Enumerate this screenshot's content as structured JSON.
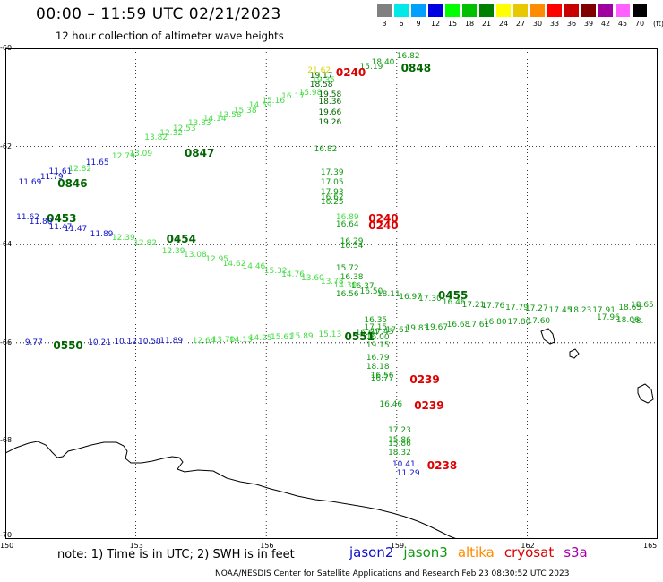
{
  "title": "00:00 – 11:59 UTC 02/21/2023",
  "subtitle": "12 hour collection of altimeter wave heights",
  "legend": {
    "unit": "(ft)",
    "bins": [
      {
        "label": "3",
        "color": "#808080"
      },
      {
        "label": "6",
        "color": "#00e8e8"
      },
      {
        "label": "9",
        "color": "#00a0ff"
      },
      {
        "label": "12",
        "color": "#0000e0"
      },
      {
        "label": "15",
        "color": "#00ff00"
      },
      {
        "label": "18",
        "color": "#00c000"
      },
      {
        "label": "21",
        "color": "#008000"
      },
      {
        "label": "24",
        "color": "#ffff00"
      },
      {
        "label": "27",
        "color": "#e8c800"
      },
      {
        "label": "30",
        "color": "#ff8c00"
      },
      {
        "label": "33",
        "color": "#ff0000"
      },
      {
        "label": "36",
        "color": "#c80000"
      },
      {
        "label": "39",
        "color": "#800000"
      },
      {
        "label": "42",
        "color": "#a000a0"
      },
      {
        "label": "45",
        "color": "#ff60ff"
      },
      {
        "label": "70",
        "color": "#000000"
      }
    ]
  },
  "axes": {
    "lon_ticks": [
      "150",
      "153",
      "156",
      "159",
      "162",
      "165"
    ],
    "lat_ticks": [
      "-60",
      "-62",
      "-64",
      "-66",
      "-68",
      "-70"
    ]
  },
  "map": {
    "lon_range": [
      150,
      165
    ],
    "lat_range": [
      -60,
      -70
    ]
  },
  "colors": {
    "light_green": "#44dd44",
    "green": "#119911",
    "dark_green": "#006600",
    "blue": "#1010cc",
    "red": "#dd0000",
    "yellow": "#d8d800"
  },
  "labels": [
    {
      "text": "16.82",
      "lon": 159.0,
      "lat": -60.08,
      "c": "green"
    },
    {
      "text": "18.40",
      "lon": 158.42,
      "lat": -60.2,
      "c": "green"
    },
    {
      "text": "15.19",
      "lon": 158.15,
      "lat": -60.3,
      "c": "green"
    },
    {
      "text": "0848",
      "lon": 159.1,
      "lat": -60.3,
      "c": "dark_green",
      "t": 1
    },
    {
      "text": "0240",
      "lon": 157.6,
      "lat": -60.38,
      "c": "red",
      "t": 1
    },
    {
      "text": "21.62",
      "lon": 156.95,
      "lat": -60.37,
      "c": "yellow"
    },
    {
      "text": "19.17",
      "lon": 157.0,
      "lat": -60.47,
      "c": "dark_green"
    },
    {
      "text": "19.35",
      "lon": 157.05,
      "lat": -60.57,
      "c": "light_green"
    },
    {
      "text": "18.58",
      "lon": 157.0,
      "lat": -60.66,
      "c": "dark_green"
    },
    {
      "text": "15.98",
      "lon": 156.75,
      "lat": -60.82,
      "c": "light_green"
    },
    {
      "text": "19.58",
      "lon": 157.2,
      "lat": -60.86,
      "c": "dark_green"
    },
    {
      "text": "16.17",
      "lon": 156.35,
      "lat": -60.9,
      "c": "light_green"
    },
    {
      "text": "15.16",
      "lon": 155.9,
      "lat": -60.98,
      "c": "light_green"
    },
    {
      "text": "18.36",
      "lon": 157.2,
      "lat": -61.0,
      "c": "dark_green"
    },
    {
      "text": "14.59",
      "lon": 155.6,
      "lat": -61.08,
      "c": "light_green"
    },
    {
      "text": "15.38",
      "lon": 155.25,
      "lat": -61.18,
      "c": "light_green"
    },
    {
      "text": "13.58",
      "lon": 154.9,
      "lat": -61.28,
      "c": "light_green"
    },
    {
      "text": "19.66",
      "lon": 157.2,
      "lat": -61.23,
      "c": "dark_green"
    },
    {
      "text": "14.14",
      "lon": 154.55,
      "lat": -61.35,
      "c": "light_green"
    },
    {
      "text": "19.26",
      "lon": 157.2,
      "lat": -61.42,
      "c": "dark_green"
    },
    {
      "text": "13.83",
      "lon": 154.2,
      "lat": -61.45,
      "c": "light_green"
    },
    {
      "text": "12.53",
      "lon": 153.85,
      "lat": -61.55,
      "c": "light_green"
    },
    {
      "text": "12.32",
      "lon": 153.55,
      "lat": -61.65,
      "c": "light_green"
    },
    {
      "text": "13.82",
      "lon": 153.2,
      "lat": -61.73,
      "c": "light_green"
    },
    {
      "text": "16.82",
      "lon": 157.1,
      "lat": -61.97,
      "c": "green"
    },
    {
      "text": "0847",
      "lon": 154.12,
      "lat": -62.03,
      "c": "dark_green",
      "t": 1
    },
    {
      "text": "13.09",
      "lon": 152.85,
      "lat": -62.07,
      "c": "light_green"
    },
    {
      "text": "12.79",
      "lon": 152.45,
      "lat": -62.12,
      "c": "light_green"
    },
    {
      "text": "11.65",
      "lon": 151.85,
      "lat": -62.25,
      "c": "blue"
    },
    {
      "text": "12.82",
      "lon": 151.45,
      "lat": -62.37,
      "c": "light_green"
    },
    {
      "text": "11.61",
      "lon": 151.0,
      "lat": -62.43,
      "c": "blue"
    },
    {
      "text": "11.79",
      "lon": 150.8,
      "lat": -62.53,
      "c": "blue"
    },
    {
      "text": "17.39",
      "lon": 157.25,
      "lat": -62.45,
      "c": "green"
    },
    {
      "text": "11.69",
      "lon": 150.3,
      "lat": -62.65,
      "c": "blue"
    },
    {
      "text": "0846",
      "lon": 151.2,
      "lat": -62.65,
      "c": "dark_green",
      "t": 1
    },
    {
      "text": "17.05",
      "lon": 157.25,
      "lat": -62.65,
      "c": "green"
    },
    {
      "text": "17.93",
      "lon": 157.25,
      "lat": -62.85,
      "c": "green"
    },
    {
      "text": "16.62",
      "lon": 157.25,
      "lat": -62.95,
      "c": "green"
    },
    {
      "text": "16.25",
      "lon": 157.25,
      "lat": -63.05,
      "c": "green"
    },
    {
      "text": "11.62",
      "lon": 150.25,
      "lat": -63.35,
      "c": "blue"
    },
    {
      "text": "0453",
      "lon": 150.95,
      "lat": -63.35,
      "c": "dark_green",
      "t": 1
    },
    {
      "text": "11.80",
      "lon": 150.55,
      "lat": -63.45,
      "c": "blue"
    },
    {
      "text": "11.47",
      "lon": 151.0,
      "lat": -63.55,
      "c": "blue"
    },
    {
      "text": "11.47",
      "lon": 151.35,
      "lat": -63.6,
      "c": "blue"
    },
    {
      "text": "16.89",
      "lon": 157.6,
      "lat": -63.35,
      "c": "light_green"
    },
    {
      "text": "0240",
      "lon": 158.35,
      "lat": -63.35,
      "c": "red",
      "t": 1
    },
    {
      "text": "16.64",
      "lon": 157.6,
      "lat": -63.5,
      "c": "green"
    },
    {
      "text": "0240",
      "lon": 158.35,
      "lat": -63.5,
      "c": "red",
      "t": 1
    },
    {
      "text": "11.89",
      "lon": 151.95,
      "lat": -63.7,
      "c": "blue"
    },
    {
      "text": "12.39",
      "lon": 152.45,
      "lat": -63.78,
      "c": "light_green"
    },
    {
      "text": "0454",
      "lon": 153.7,
      "lat": -63.78,
      "c": "dark_green",
      "t": 1
    },
    {
      "text": "12.82",
      "lon": 152.95,
      "lat": -63.88,
      "c": "light_green"
    },
    {
      "text": "16.29",
      "lon": 157.7,
      "lat": -63.85,
      "c": "green"
    },
    {
      "text": "16.34",
      "lon": 157.7,
      "lat": -63.95,
      "c": "green"
    },
    {
      "text": "12.39",
      "lon": 153.6,
      "lat": -64.05,
      "c": "light_green"
    },
    {
      "text": "13.08",
      "lon": 154.1,
      "lat": -64.12,
      "c": "light_green"
    },
    {
      "text": "12.95",
      "lon": 154.6,
      "lat": -64.22,
      "c": "light_green"
    },
    {
      "text": "14.62",
      "lon": 155.0,
      "lat": -64.3,
      "c": "light_green"
    },
    {
      "text": "14.46",
      "lon": 155.45,
      "lat": -64.37,
      "c": "light_green"
    },
    {
      "text": "15.32",
      "lon": 155.95,
      "lat": -64.45,
      "c": "light_green"
    },
    {
      "text": "15.72",
      "lon": 157.6,
      "lat": -64.4,
      "c": "green"
    },
    {
      "text": "14.76",
      "lon": 156.35,
      "lat": -64.52,
      "c": "light_green"
    },
    {
      "text": "16.38",
      "lon": 157.7,
      "lat": -64.58,
      "c": "green"
    },
    {
      "text": "13.60",
      "lon": 156.8,
      "lat": -64.6,
      "c": "light_green"
    },
    {
      "text": "13.78",
      "lon": 157.25,
      "lat": -64.68,
      "c": "light_green"
    },
    {
      "text": "14.30",
      "lon": 157.55,
      "lat": -64.75,
      "c": "light_green"
    },
    {
      "text": "16.37",
      "lon": 157.95,
      "lat": -64.77,
      "c": "green"
    },
    {
      "text": "16.56",
      "lon": 157.6,
      "lat": -64.92,
      "c": "green"
    },
    {
      "text": "16.50",
      "lon": 158.15,
      "lat": -64.87,
      "c": "green"
    },
    {
      "text": "18.11",
      "lon": 158.55,
      "lat": -64.92,
      "c": "green"
    },
    {
      "text": "0455",
      "lon": 159.95,
      "lat": -64.92,
      "c": "dark_green",
      "t": 1
    },
    {
      "text": "16.97",
      "lon": 159.05,
      "lat": -64.98,
      "c": "green"
    },
    {
      "text": "17.30",
      "lon": 159.5,
      "lat": -65.02,
      "c": "green"
    },
    {
      "text": "16.46",
      "lon": 160.05,
      "lat": -65.1,
      "c": "green"
    },
    {
      "text": "17.21",
      "lon": 160.5,
      "lat": -65.15,
      "c": "green"
    },
    {
      "text": "17.76",
      "lon": 160.95,
      "lat": -65.17,
      "c": "green"
    },
    {
      "text": "17.79",
      "lon": 161.5,
      "lat": -65.2,
      "c": "green"
    },
    {
      "text": "17.27",
      "lon": 161.95,
      "lat": -65.22,
      "c": "green"
    },
    {
      "text": "17.45",
      "lon": 162.5,
      "lat": -65.25,
      "c": "green"
    },
    {
      "text": "18.23",
      "lon": 162.95,
      "lat": -65.25,
      "c": "green"
    },
    {
      "text": "17.91",
      "lon": 163.5,
      "lat": -65.25,
      "c": "green"
    },
    {
      "text": "18.65",
      "lon": 164.1,
      "lat": -65.2,
      "c": "green"
    },
    {
      "text": "18.65",
      "lon": 164.55,
      "lat": -65.15,
      "c": "green"
    },
    {
      "text": "17.96",
      "lon": 163.6,
      "lat": -65.4,
      "c": "green"
    },
    {
      "text": "18.06",
      "lon": 164.05,
      "lat": -65.45,
      "c": "green"
    },
    {
      "text": "18.",
      "lon": 164.6,
      "lat": -65.48,
      "c": "green"
    },
    {
      "text": "16.35",
      "lon": 158.25,
      "lat": -65.45,
      "c": "green"
    },
    {
      "text": "17.15",
      "lon": 158.25,
      "lat": -65.6,
      "c": "green"
    },
    {
      "text": "17.60",
      "lon": 162.0,
      "lat": -65.48,
      "c": "green"
    },
    {
      "text": "17.80",
      "lon": 161.55,
      "lat": -65.5,
      "c": "green"
    },
    {
      "text": "16.80",
      "lon": 161.0,
      "lat": -65.5,
      "c": "green"
    },
    {
      "text": "17.61",
      "lon": 160.6,
      "lat": -65.55,
      "c": "green"
    },
    {
      "text": "16.68",
      "lon": 160.15,
      "lat": -65.55,
      "c": "green"
    },
    {
      "text": "19.67",
      "lon": 159.65,
      "lat": -65.6,
      "c": "green"
    },
    {
      "text": "19.83",
      "lon": 159.2,
      "lat": -65.62,
      "c": "green"
    },
    {
      "text": "17.61",
      "lon": 158.75,
      "lat": -65.65,
      "c": "green"
    },
    {
      "text": "17.43",
      "lon": 158.4,
      "lat": -65.7,
      "c": "green"
    },
    {
      "text": "16.64",
      "lon": 158.05,
      "lat": -65.72,
      "c": "green"
    },
    {
      "text": "15.13",
      "lon": 157.2,
      "lat": -65.75,
      "c": "light_green"
    },
    {
      "text": "0551",
      "lon": 157.8,
      "lat": -65.77,
      "c": "dark_green",
      "t": 1
    },
    {
      "text": "16.00",
      "lon": 158.3,
      "lat": -65.8,
      "c": "green"
    },
    {
      "text": "15.89",
      "lon": 156.55,
      "lat": -65.78,
      "c": "light_green"
    },
    {
      "text": "15.61",
      "lon": 156.1,
      "lat": -65.8,
      "c": "light_green"
    },
    {
      "text": "14.25",
      "lon": 155.6,
      "lat": -65.82,
      "c": "light_green"
    },
    {
      "text": "14.13",
      "lon": 155.15,
      "lat": -65.85,
      "c": "light_green"
    },
    {
      "text": "13.70",
      "lon": 154.75,
      "lat": -65.85,
      "c": "light_green"
    },
    {
      "text": "12.64",
      "lon": 154.3,
      "lat": -65.87,
      "c": "light_green"
    },
    {
      "text": "11.89",
      "lon": 153.55,
      "lat": -65.88,
      "c": "blue"
    },
    {
      "text": "10.50",
      "lon": 153.05,
      "lat": -65.9,
      "c": "blue"
    },
    {
      "text": "10.12",
      "lon": 152.5,
      "lat": -65.9,
      "c": "blue"
    },
    {
      "text": "10.21",
      "lon": 151.9,
      "lat": -65.92,
      "c": "blue"
    },
    {
      "text": "9.77",
      "lon": 150.45,
      "lat": -65.92,
      "c": "blue"
    },
    {
      "text": "0550",
      "lon": 151.1,
      "lat": -65.95,
      "c": "dark_green",
      "t": 1
    },
    {
      "text": "19.15",
      "lon": 158.3,
      "lat": -65.97,
      "c": "green"
    },
    {
      "text": "16.79",
      "lon": 158.3,
      "lat": -66.22,
      "c": "green"
    },
    {
      "text": "18.18",
      "lon": 158.3,
      "lat": -66.4,
      "c": "green"
    },
    {
      "text": "16.56",
      "lon": 158.4,
      "lat": -66.58,
      "c": "green"
    },
    {
      "text": "16.77",
      "lon": 158.4,
      "lat": -66.65,
      "c": "green"
    },
    {
      "text": "0239",
      "lon": 159.3,
      "lat": -66.65,
      "c": "red",
      "t": 1
    },
    {
      "text": "16.46",
      "lon": 158.6,
      "lat": -67.18,
      "c": "green"
    },
    {
      "text": "0239",
      "lon": 159.4,
      "lat": -67.18,
      "c": "red",
      "t": 1
    },
    {
      "text": "17.23",
      "lon": 158.8,
      "lat": -67.7,
      "c": "green"
    },
    {
      "text": "15.86",
      "lon": 158.8,
      "lat": -67.9,
      "c": "green"
    },
    {
      "text": "15.86",
      "lon": 158.8,
      "lat": -67.97,
      "c": "green"
    },
    {
      "text": "18.32",
      "lon": 158.8,
      "lat": -68.15,
      "c": "green"
    },
    {
      "text": "10.41",
      "lon": 158.9,
      "lat": -68.4,
      "c": "blue"
    },
    {
      "text": "0238",
      "lon": 159.7,
      "lat": -68.4,
      "c": "red",
      "t": 1
    },
    {
      "text": "11.29",
      "lon": 159.0,
      "lat": -68.58,
      "c": "blue"
    }
  ],
  "note": "note:  1) Time is in UTC;  2) SWH is in feet",
  "satellites": [
    {
      "name": "jason2",
      "color": "#1010cc"
    },
    {
      "name": "jason3",
      "color": "#119911"
    },
    {
      "name": "altika",
      "color": "#ff8c00"
    },
    {
      "name": "cryosat",
      "color": "#dd0000"
    },
    {
      "name": "s3a",
      "color": "#aa00aa"
    }
  ],
  "credit": "NOAA/NESDIS Center for Satellite Applications and Research    Feb 23 08:30:52 UTC 2023"
}
